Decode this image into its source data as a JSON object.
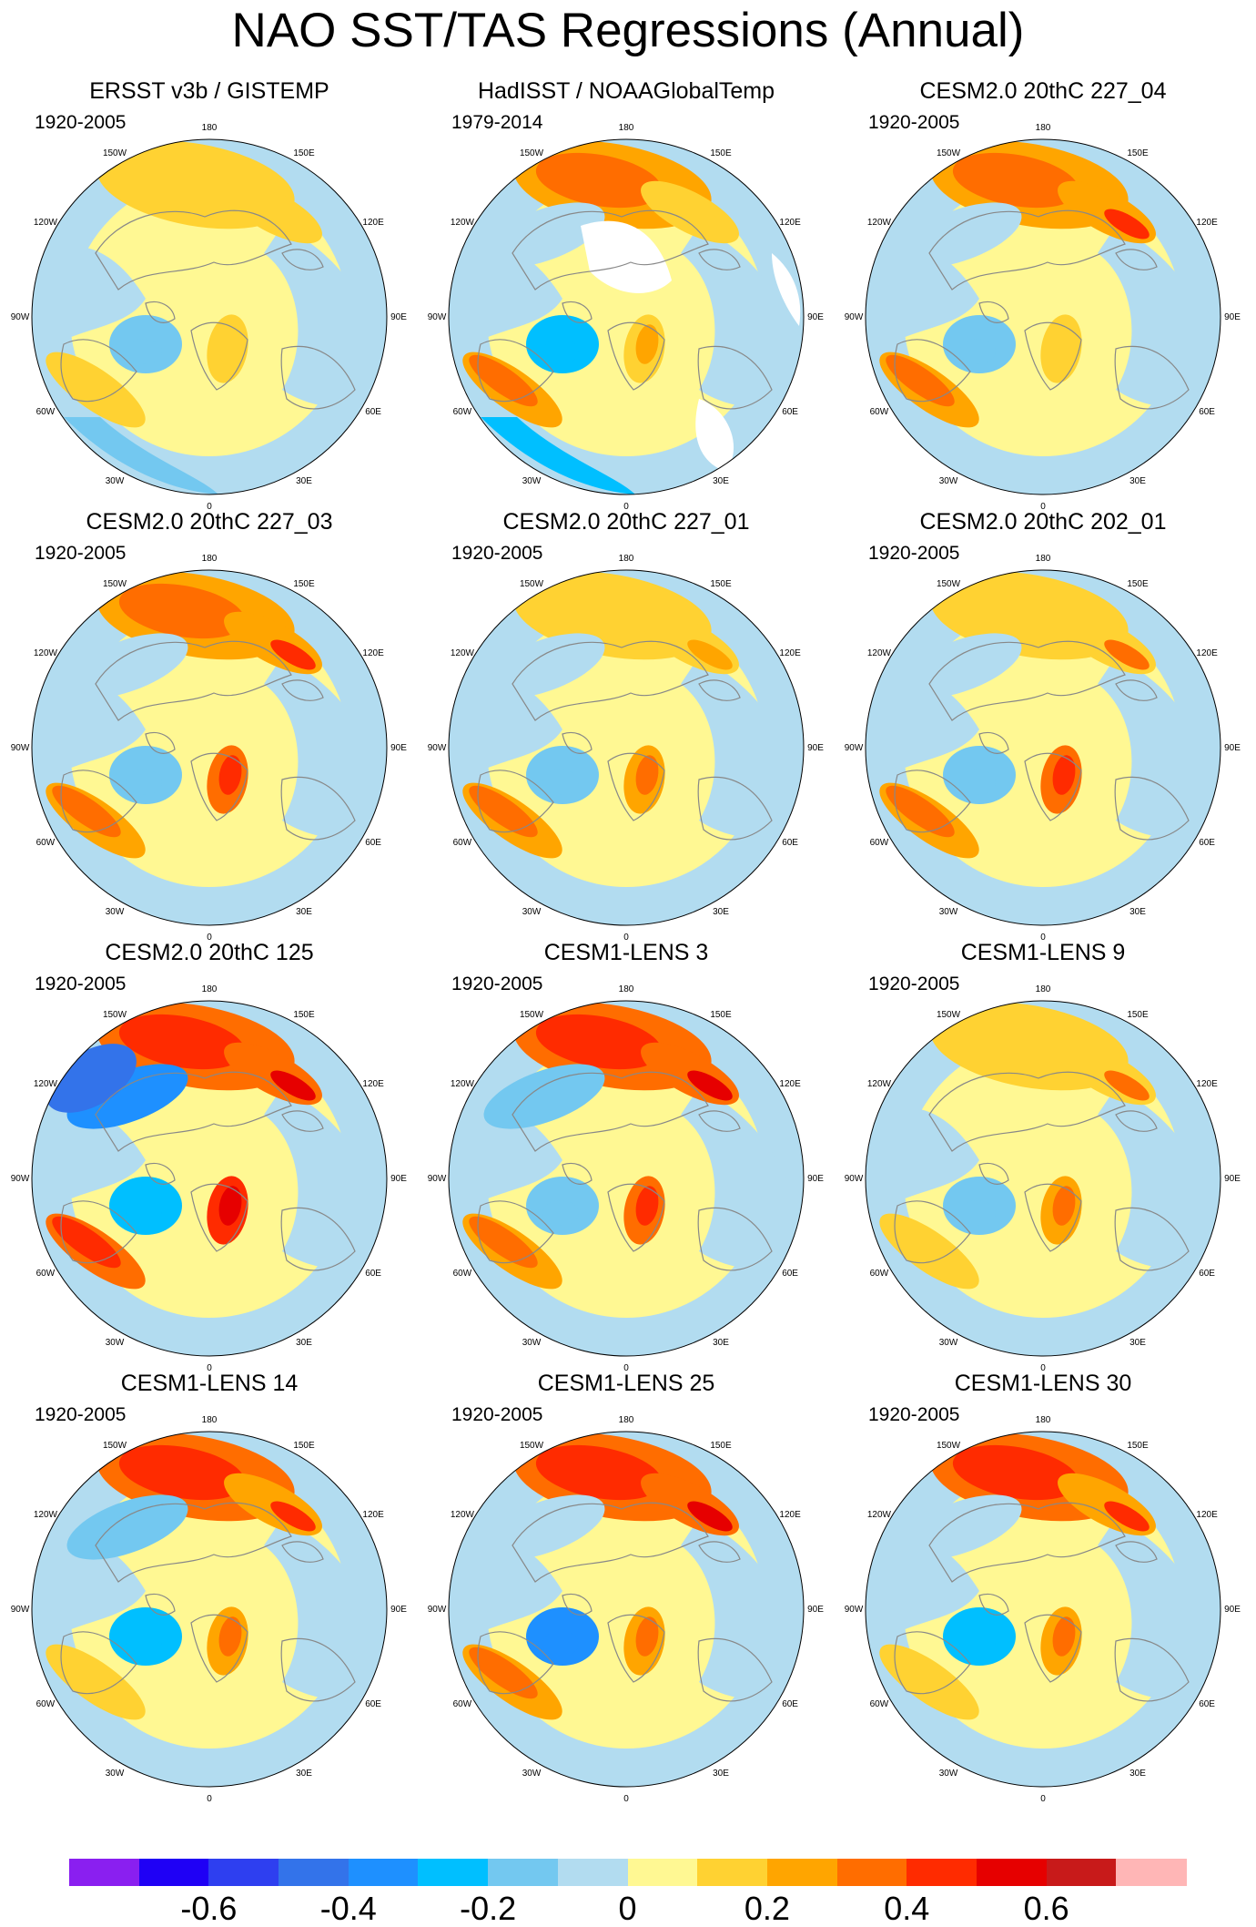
{
  "title": "NAO SST/TAS Regressions (Annual)",
  "longitude_labels": [
    "180",
    "150E",
    "120E",
    "90E",
    "60E",
    "30E",
    "0",
    "30W",
    "60W",
    "90W",
    "120W",
    "150W"
  ],
  "colors": {
    "levels": [
      "#8a1ff0",
      "#1f00f5",
      "#2e3ff0",
      "#3373ea",
      "#1e90ff",
      "#00bfff",
      "#73c8f0",
      "#b2dcf0",
      "#fff893",
      "#ffd232",
      "#ffa500",
      "#ff6d00",
      "#ff2b00",
      "#e60000",
      "#c81a1a",
      "#ffb6b6"
    ],
    "land_outline": "#888888"
  },
  "chart_data": {
    "type": "polar-map-panels",
    "variable": "NAO SST/TAS regression",
    "season": "Annual",
    "panels": [
      {
        "title": "ERSST v3b / GISTEMP",
        "period": "1920-2005",
        "pattern": {
          "pacific": 1,
          "warm_pool": 1,
          "gulf_ns": 0,
          "scand": 1,
          "lab": -2,
          "arctic": 0,
          "tropic": -2,
          "siberia": 0,
          "blank": 0
        }
      },
      {
        "title": "HadISST / NOAAGlobalTemp",
        "period": "1979-2014",
        "pattern": {
          "pacific": 2,
          "warm_pool": 1,
          "gulf_ns": 2,
          "scand": 2,
          "lab": -3,
          "arctic": -1,
          "tropic": -3,
          "siberia": 0,
          "blank": 1
        }
      },
      {
        "title": "CESM2.0 20thC 227_04",
        "period": "1920-2005",
        "pattern": {
          "pacific": 2,
          "warm_pool": 4,
          "gulf_ns": 2,
          "scand": 1,
          "lab": -2,
          "arctic": -1,
          "tropic": 0,
          "siberia": 0,
          "blank": 0
        }
      },
      {
        "title": "CESM2.0 20thC 227_03",
        "period": "1920-2005",
        "pattern": {
          "pacific": 2,
          "warm_pool": 4,
          "gulf_ns": 2,
          "scand": 4,
          "lab": -2,
          "arctic": -1,
          "tropic": 0,
          "siberia": 0,
          "blank": 0
        }
      },
      {
        "title": "CESM2.0 20thC 227_01",
        "period": "1920-2005",
        "pattern": {
          "pacific": 1,
          "warm_pool": 2,
          "gulf_ns": 2,
          "scand": 3,
          "lab": -2,
          "arctic": -1,
          "tropic": 0,
          "siberia": 0,
          "blank": 0
        }
      },
      {
        "title": "CESM2.0 20thC 202_01",
        "period": "1920-2005",
        "pattern": {
          "pacific": 1,
          "warm_pool": 3,
          "gulf_ns": 2,
          "scand": 4,
          "lab": -2,
          "arctic": -1,
          "tropic": 0,
          "siberia": 0,
          "blank": 0
        }
      },
      {
        "title": "CESM2.0 20thC 125",
        "period": "1920-2005",
        "pattern": {
          "pacific": 3,
          "warm_pool": 5,
          "gulf_ns": 3,
          "scand": 5,
          "lab": -3,
          "arctic": -4,
          "tropic": 0,
          "siberia": 0,
          "blank": 0
        }
      },
      {
        "title": "CESM1-LENS 3",
        "period": "1920-2005",
        "pattern": {
          "pacific": 3,
          "warm_pool": 5,
          "gulf_ns": 2,
          "scand": 4,
          "lab": -2,
          "arctic": -2,
          "tropic": 0,
          "siberia": 0,
          "blank": 0
        }
      },
      {
        "title": "CESM1-LENS 9",
        "period": "1920-2005",
        "pattern": {
          "pacific": 1,
          "warm_pool": 3,
          "gulf_ns": 1,
          "scand": 3,
          "lab": -2,
          "arctic": 0,
          "tropic": 0,
          "siberia": 0,
          "blank": 0
        }
      },
      {
        "title": "CESM1-LENS 14",
        "period": "1920-2005",
        "pattern": {
          "pacific": 3,
          "warm_pool": 4,
          "gulf_ns": 1,
          "scand": 3,
          "lab": -3,
          "arctic": -2,
          "tropic": 0,
          "siberia": 0,
          "blank": 0
        }
      },
      {
        "title": "CESM1-LENS 25",
        "period": "1920-2005",
        "pattern": {
          "pacific": 3,
          "warm_pool": 5,
          "gulf_ns": 2,
          "scand": 3,
          "lab": -4,
          "arctic": -1,
          "tropic": 0,
          "siberia": 0,
          "blank": 0
        }
      },
      {
        "title": "CESM1-LENS 30",
        "period": "1920-2005",
        "pattern": {
          "pacific": 3,
          "warm_pool": 4,
          "gulf_ns": 1,
          "scand": 3,
          "lab": -3,
          "arctic": -1,
          "tropic": 0,
          "siberia": 0,
          "blank": 0
        }
      }
    ],
    "colorbar": {
      "levels": [
        -0.7,
        -0.6,
        -0.5,
        -0.4,
        -0.3,
        -0.2,
        -0.1,
        0,
        0.1,
        0.2,
        0.3,
        0.4,
        0.5,
        0.6,
        0.7
      ],
      "tick_values": [
        -0.6,
        -0.4,
        -0.2,
        0,
        0.2,
        0.4,
        0.6
      ],
      "tick_labels": [
        "-0.6",
        "-0.4",
        "-0.2",
        "0",
        "0.2",
        "0.4",
        "0.6"
      ],
      "range": [
        -0.8,
        0.8
      ]
    }
  }
}
